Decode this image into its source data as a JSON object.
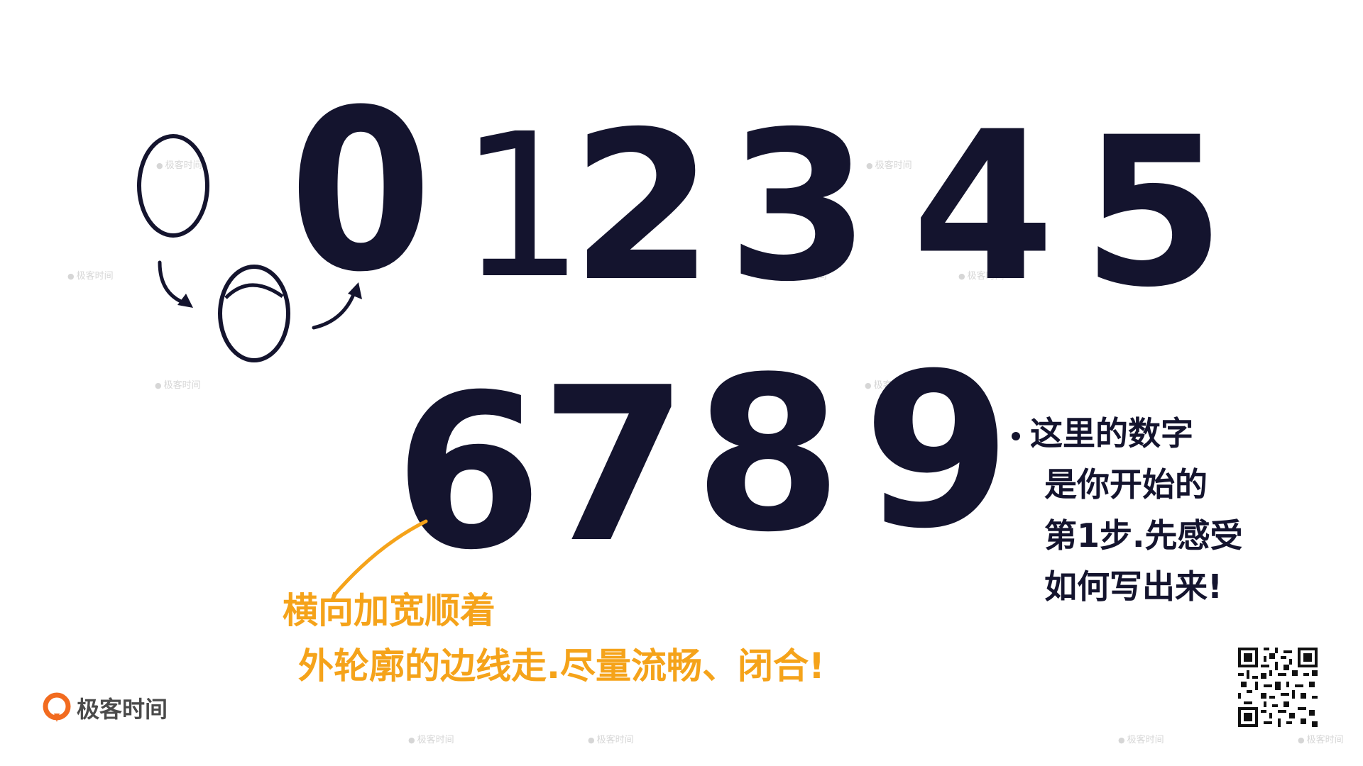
{
  "digits": {
    "row1": [
      "0",
      "1",
      "2",
      "3",
      "4",
      "5"
    ],
    "row2": [
      "6",
      "7",
      "8",
      "9"
    ],
    "sketch_stage_label": "0"
  },
  "notes": {
    "orange": {
      "lines": [
        "横向加宽顺着",
        "外轮廓的边线走.尽量流畅、闭合!"
      ],
      "color": "#f5a31a"
    },
    "black": {
      "lines": [
        "这里的数字",
        "是你开始的",
        "第1步.先感受",
        "如何写出来!"
      ],
      "color": "#14142e"
    }
  },
  "brand": {
    "logo_text": "极客时间",
    "logo_color": "#f26b1f",
    "watermark_text": "极客时间"
  },
  "colors": {
    "ink": "#14142e",
    "accent": "#f5a31a",
    "background": "#ffffff",
    "watermark": "#d6d6d6"
  }
}
